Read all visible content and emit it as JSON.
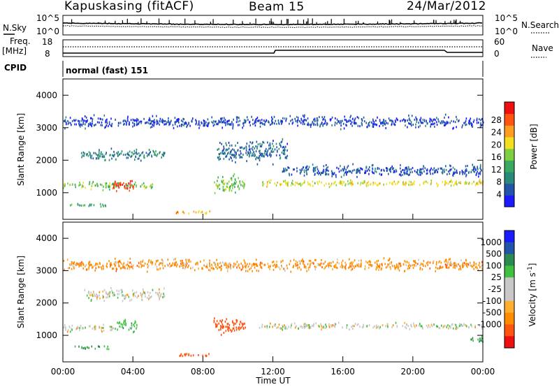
{
  "header": {
    "station": "Kapuskasing (fitACF)",
    "beam": "Beam 15",
    "date": "24/Mar/2012"
  },
  "strip_labels": {
    "nsky": "N.Sky",
    "nsearch": "N.Search",
    "freq_line1": "Freq.",
    "freq_line2": "[MHz]",
    "nave": "Nave",
    "cpid": "CPID",
    "cpid_value": "normal (fast) 151",
    "noise_top": "10^5",
    "noise_bottom": "10^0",
    "freq_top": "18",
    "freq_bottom": "8",
    "nave_top": "60",
    "nave_bottom": "0"
  },
  "colors": {
    "power_scale": [
      "#1a1aff",
      "#2255aa",
      "#2a8a7a",
      "#3aa860",
      "#7fd040",
      "#f0e020",
      "#ff9d20",
      "#ff5510",
      "#ee1010"
    ],
    "velocity_scale": [
      "#ee1010",
      "#ff5510",
      "#ff8c00",
      "#ffae30",
      "#c8c8c8",
      "#c8c8c8",
      "#40c040",
      "#2a8a50",
      "#2255aa",
      "#1a1aff"
    ]
  },
  "chart_data": [
    {
      "type": "heatmap",
      "panel": "power",
      "ylabel": "Slant Range [km]",
      "colorbar_label": "Power [dB]",
      "colorbar_ticks": [
        "28",
        "24",
        "20",
        "16",
        "12",
        "8",
        "4"
      ],
      "y_ticks": [
        "4000",
        "3000",
        "2000",
        "1000"
      ],
      "ylim": [
        180,
        4500
      ],
      "xlim": [
        0,
        24
      ],
      "scatter_bands": [
        {
          "x_start": 0.0,
          "x_end": 5.2,
          "y_center": 1250,
          "y_width": 300,
          "value": 14
        },
        {
          "x_start": 2.8,
          "x_end": 4.2,
          "y_center": 1250,
          "y_width": 450,
          "value": 26
        },
        {
          "x_start": 0.3,
          "x_end": 2.6,
          "y_center": 650,
          "y_width": 140,
          "value": 12
        },
        {
          "x_start": 1.0,
          "x_end": 5.8,
          "y_center": 2200,
          "y_width": 450,
          "value": 8
        },
        {
          "x_start": 6.4,
          "x_end": 8.4,
          "y_center": 430,
          "y_width": 150,
          "value": 20
        },
        {
          "x_start": 8.6,
          "x_end": 10.4,
          "y_center": 1300,
          "y_width": 700,
          "value": 14
        },
        {
          "x_start": 8.8,
          "x_end": 12.8,
          "y_center": 2300,
          "y_width": 900,
          "value": 6
        },
        {
          "x_start": 11.2,
          "x_end": 24.0,
          "y_center": 1320,
          "y_width": 260,
          "value": 18
        },
        {
          "x_start": 12.5,
          "x_end": 24.0,
          "y_center": 1700,
          "y_width": 500,
          "value": 5
        },
        {
          "x_start": 0.0,
          "x_end": 24.0,
          "y_center": 3200,
          "y_width": 500,
          "value": 4
        }
      ]
    },
    {
      "type": "heatmap",
      "panel": "velocity",
      "ylabel": "Slant Range [km]",
      "colorbar_label": "Velocity [m s^-1]",
      "colorbar_ticks": [
        "1000",
        "500",
        "100",
        "25",
        "-25",
        "-100",
        "-500",
        "-1000"
      ],
      "y_ticks": [
        "4000",
        "3000",
        "2000",
        "1000"
      ],
      "ylim": [
        180,
        4500
      ],
      "xlim": [
        0,
        24
      ],
      "scatter_bands": [
        {
          "x_start": 0.0,
          "x_end": 3.0,
          "y_center": 1250,
          "y_width": 300,
          "value": 0
        },
        {
          "x_start": 3.0,
          "x_end": 4.2,
          "y_center": 1350,
          "y_width": 500,
          "value": 60
        },
        {
          "x_start": 0.3,
          "x_end": 2.6,
          "y_center": 650,
          "y_width": 140,
          "value": 100
        },
        {
          "x_start": 1.2,
          "x_end": 5.8,
          "y_center": 2300,
          "y_width": 500,
          "value": 0
        },
        {
          "x_start": 6.4,
          "x_end": 8.4,
          "y_center": 430,
          "y_width": 150,
          "value": -200
        },
        {
          "x_start": 8.6,
          "x_end": 10.4,
          "y_center": 1300,
          "y_width": 700,
          "value": -300
        },
        {
          "x_start": 11.2,
          "x_end": 24.0,
          "y_center": 1320,
          "y_width": 260,
          "value": 0
        },
        {
          "x_start": 23.2,
          "x_end": 24.0,
          "y_center": 900,
          "y_width": 300,
          "value": 100
        },
        {
          "x_start": 0.0,
          "x_end": 24.0,
          "y_center": 3200,
          "y_width": 500,
          "value": -60
        }
      ]
    }
  ],
  "xaxis": {
    "ticks": [
      "00:00",
      "04:00",
      "08:00",
      "12:00",
      "16:00",
      "20:00",
      "00:00"
    ],
    "label": "Time UT"
  }
}
